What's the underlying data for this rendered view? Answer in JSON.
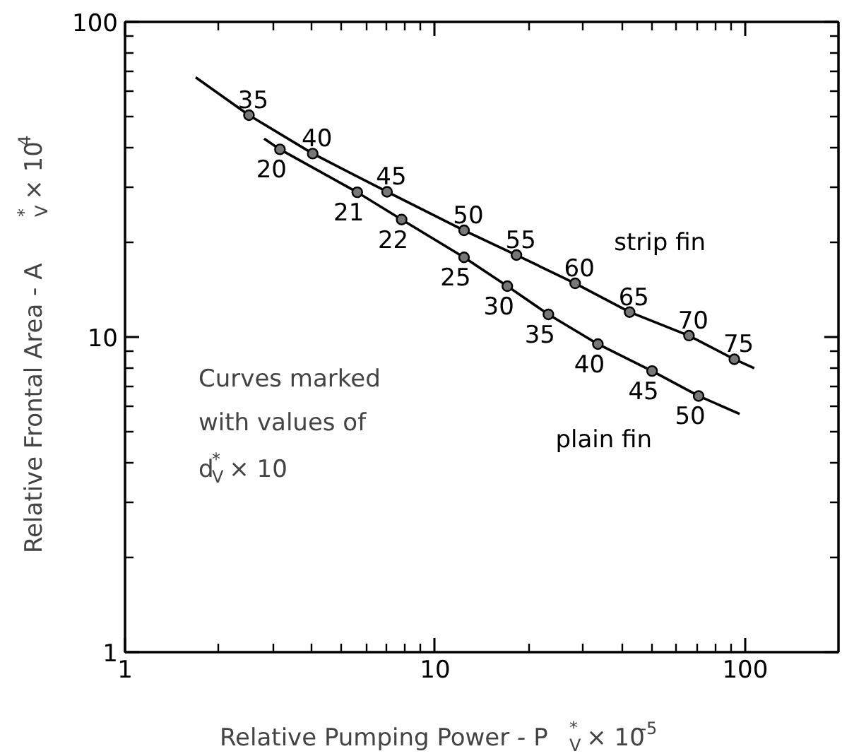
{
  "chart_data": {
    "type": "line",
    "xlabel": "Relative Pumping Power - P$^{*}$$_{V}$ × 10$^{-5}$",
    "ylabel": "Relative Frontal Area - A$^{*}$$_{V}$ × 10$^{4}$",
    "log": "xy",
    "xlim": [
      1,
      200
    ],
    "ylim": [
      1,
      100
    ],
    "xticks": [
      1,
      10,
      100
    ],
    "yticks": [
      1,
      10,
      100
    ],
    "grid": false,
    "line_style": "solid",
    "series": [
      {
        "name": "strip fin",
        "color": "#000000",
        "marker": "none",
        "x": [
          1.69,
          2.51,
          4.03,
          7.0,
          12.4,
          18.3,
          28.3,
          42.4,
          65.9,
          92.3,
          107
        ],
        "values": [
          66.7,
          50.6,
          38.2,
          28.9,
          21.8,
          18.2,
          14.8,
          12.0,
          10.1,
          8.5,
          7.96
        ]
      },
      {
        "type": "scatter",
        "color": "#000000",
        "marker": "circle",
        "x": [
          2.51,
          4.03,
          7.0,
          12.4,
          18.3,
          28.3,
          42.4,
          65.9,
          92.3
        ],
        "values": [
          50.6,
          38.2,
          28.9,
          21.8,
          18.2,
          14.8,
          12.0,
          10.1,
          8.5
        ]
      },
      {
        "name": "plain fin",
        "color": "#000000",
        "marker": "none",
        "x": [
          2.81,
          3.16,
          5.61,
          7.8,
          12.4,
          17.1,
          23.2,
          33.5,
          50.1,
          70.8,
          96
        ],
        "values": [
          42.6,
          39.4,
          28.8,
          23.6,
          17.9,
          14.5,
          11.8,
          9.5,
          7.8,
          6.5,
          5.7
        ]
      },
      {
        "type": "scatter",
        "color": "#000000",
        "marker": "circle",
        "x": [
          3.16,
          5.61,
          7.8,
          12.4,
          17.1,
          23.2,
          33.5,
          50.1,
          70.8
        ],
        "values": [
          39.4,
          28.8,
          23.6,
          17.9,
          14.5,
          11.8,
          9.5,
          7.8,
          6.5
        ]
      }
    ],
    "annotations": [
      "Curves marked",
      "with values of",
      "d$^{*}$$_{V}$ × 10",
      {
        "text": "35",
        "x": 2.51,
        "y": 50.6
      },
      {
        "text": "40",
        "x": 4.03,
        "y": 38.2
      },
      {
        "text": "45",
        "x": 7.0,
        "y": 28.9
      },
      {
        "text": "50",
        "x": 12.4,
        "y": 21.8
      },
      {
        "text": "55",
        "x": 18.3,
        "y": 18.2
      },
      {
        "text": "60",
        "x": 28.3,
        "y": 14.8
      },
      {
        "text": "65",
        "x": 42.4,
        "y": 12.0
      },
      {
        "text": "70",
        "x": 65.9,
        "y": 10.1
      },
      {
        "text": "75",
        "x": 92.3,
        "y": 8.5
      },
      {
        "text": "20",
        "x": 3.16,
        "y": 39.4
      },
      {
        "text": "21",
        "x": 5.61,
        "y": 28.8
      },
      {
        "text": "22",
        "x": 7.8,
        "y": 23.6
      },
      {
        "text": "25",
        "x": 12.4,
        "y": 17.9
      },
      {
        "text": "30",
        "x": 17.1,
        "y": 14.5
      },
      {
        "text": "35",
        "x": 23.2,
        "y": 11.8
      },
      {
        "text": "40",
        "x": 33.5,
        "y": 9.5
      },
      {
        "text": "45",
        "x": 50.1,
        "y": 7.8
      },
      {
        "text": "50",
        "x": 70.8,
        "y": 6.5
      }
    ]
  }
}
